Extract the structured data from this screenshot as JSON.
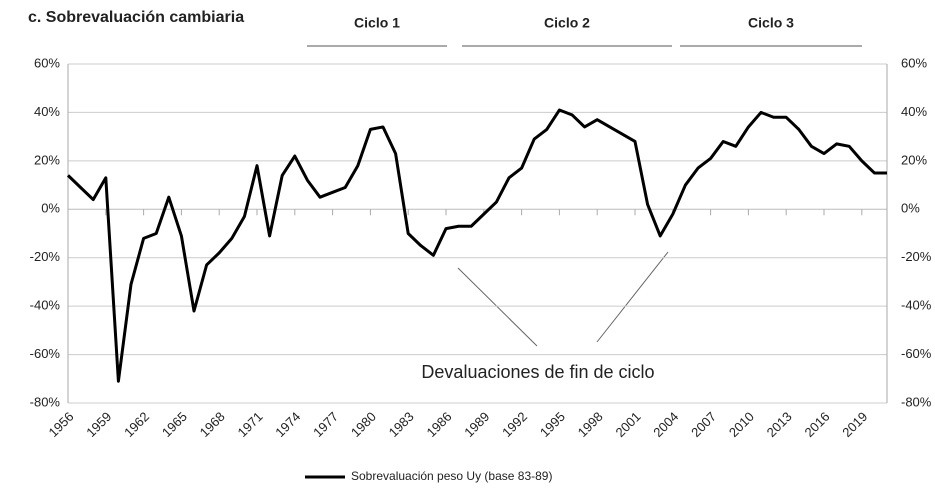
{
  "chart_data": {
    "type": "line",
    "title": "c. Sobrevaluación cambiaria",
    "cycles": [
      "Ciclo 1",
      "Ciclo 2",
      "Ciclo 3"
    ],
    "annotation": "Devaluaciones de fin de ciclo",
    "x": [
      1956,
      1957,
      1958,
      1959,
      1960,
      1961,
      1962,
      1963,
      1964,
      1965,
      1966,
      1967,
      1968,
      1969,
      1970,
      1971,
      1972,
      1973,
      1974,
      1975,
      1976,
      1977,
      1978,
      1979,
      1980,
      1981,
      1982,
      1983,
      1984,
      1985,
      1986,
      1987,
      1988,
      1989,
      1990,
      1991,
      1992,
      1993,
      1994,
      1995,
      1996,
      1997,
      1998,
      1999,
      2000,
      2001,
      2002,
      2003,
      2004,
      2005,
      2006,
      2007,
      2008,
      2009,
      2010,
      2011,
      2012,
      2013,
      2014,
      2015,
      2016,
      2017,
      2018,
      2019,
      2020,
      2021
    ],
    "series": [
      {
        "name": "Sobrevaluación peso Uy (base 83-89)",
        "color": "#000000",
        "values": [
          14,
          9,
          4,
          13,
          -71,
          -31,
          -12,
          -10,
          5,
          -11,
          -42,
          -23,
          -18,
          -12,
          -3,
          18,
          -11,
          14,
          22,
          12,
          5,
          7,
          9,
          18,
          33,
          34,
          23,
          -10,
          -15,
          -19,
          -8,
          -7,
          -7,
          -2,
          3,
          13,
          17,
          29,
          33,
          41,
          39,
          34,
          37,
          34,
          31,
          28,
          2,
          -11,
          -2,
          10,
          17,
          21,
          28,
          26,
          34,
          40,
          38,
          38,
          33,
          26,
          23,
          27,
          26,
          20,
          15,
          15
        ]
      }
    ],
    "xlim": [
      1956,
      2021
    ],
    "xticks": [
      1956,
      1959,
      1962,
      1965,
      1968,
      1971,
      1974,
      1977,
      1980,
      1983,
      1986,
      1989,
      1992,
      1995,
      1998,
      2001,
      2004,
      2007,
      2010,
      2013,
      2016,
      2019
    ],
    "ylim": [
      -80,
      60
    ],
    "yticks": [
      {
        "value": -80,
        "label": "-80%"
      },
      {
        "value": -60,
        "label": "-60%"
      },
      {
        "value": -40,
        "label": "-40%"
      },
      {
        "value": -20,
        "label": "-20%"
      },
      {
        "value": 0,
        "label": "0%"
      },
      {
        "value": 20,
        "label": "20%"
      },
      {
        "value": 40,
        "label": "40%"
      },
      {
        "value": 60,
        "label": "60%"
      }
    ],
    "grid": true
  }
}
